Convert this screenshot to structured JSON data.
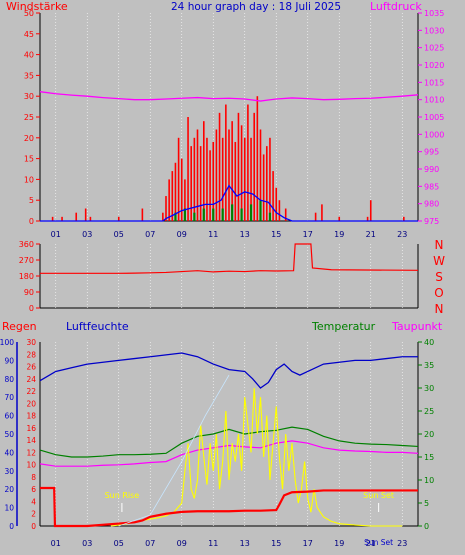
{
  "header": {
    "title": "24 hour graph day : 18 Juli 2025",
    "left_label": "Windstärke",
    "right_label": "Luftdruck"
  },
  "colors": {
    "background": "#c0c0c0",
    "gridline": "#ffffff",
    "wind": "#ff0000",
    "gust": "#0000ff",
    "windrun": "#008000",
    "pressure": "#ff00ff",
    "humidity": "#0000c8",
    "temperature": "#008000",
    "dewpoint": "#ff00ff",
    "solar": "#ffff00",
    "rain": "#ff0000",
    "sun_label": "#ffff00"
  },
  "chart_data": [
    {
      "type": "line",
      "title": "24 hour graph day : 18 Juli 2025",
      "xlabel": "",
      "x_ticks": [
        "01",
        "03",
        "05",
        "07",
        "09",
        "11",
        "13",
        "15",
        "17",
        "19",
        "21",
        "23"
      ],
      "xlim": [
        0,
        24
      ],
      "y_left_label": "Windstärke",
      "ylim_left": [
        0,
        50
      ],
      "y_left_ticks": [
        0,
        5,
        10,
        15,
        20,
        25,
        30,
        35,
        40,
        45,
        50
      ],
      "y_right_label": "Luftdruck",
      "ylim_right": [
        975,
        1035
      ],
      "y_right_ticks": [
        975,
        980,
        985,
        990,
        995,
        1000,
        1005,
        1010,
        1015,
        1020,
        1025,
        1030,
        1035
      ],
      "series": [
        {
          "axis": "right",
          "x": [
            0,
            1,
            2,
            3,
            4,
            5,
            6,
            7,
            8,
            9,
            10,
            11,
            12,
            13,
            14,
            14.5,
            15,
            16,
            17,
            18,
            19,
            20,
            21,
            22,
            23,
            24
          ],
          "values": [
            1012.3,
            1011.7,
            1011.3,
            1011.0,
            1010.6,
            1010.3,
            1010.0,
            1010.0,
            1010.2,
            1010.4,
            1010.6,
            1010.3,
            1010.4,
            1010.2,
            1009.6,
            1009.9,
            1010.2,
            1010.5,
            1010.3,
            1010.0,
            1010.1,
            1010.3,
            1010.4,
            1010.7,
            1011.0,
            1011.4
          ]
        },
        {
          "axis": "left",
          "x": [
            0,
            7.8,
            8.0,
            8.5,
            9,
            9.5,
            10,
            10.5,
            11,
            11.5,
            12,
            12.5,
            13,
            13.5,
            14,
            14.5,
            15,
            15.5,
            16,
            24
          ],
          "values": [
            0,
            0,
            0.6,
            1.5,
            2.5,
            3.0,
            3.5,
            4.0,
            4.0,
            5.0,
            8.5,
            6.0,
            7.0,
            6.5,
            5.0,
            4.5,
            2.0,
            0.8,
            0,
            0
          ]
        }
      ],
      "bars": {
        "wind": {
          "axis": "left",
          "x": [
            0.8,
            1.4,
            2.3,
            2.9,
            3.2,
            5.0,
            6.5,
            7.8,
            8.0,
            8.2,
            8.4,
            8.6,
            8.8,
            9.0,
            9.2,
            9.4,
            9.6,
            9.8,
            10.0,
            10.2,
            10.4,
            10.6,
            10.8,
            11.0,
            11.2,
            11.4,
            11.6,
            11.8,
            12.0,
            12.2,
            12.4,
            12.6,
            12.8,
            13.0,
            13.2,
            13.4,
            13.6,
            13.8,
            14.0,
            14.2,
            14.4,
            14.6,
            14.8,
            15.0,
            15.2,
            15.6,
            17.5,
            17.9,
            19.0,
            20.8,
            21.0,
            23.1
          ],
          "values": [
            1,
            1,
            2,
            3,
            1,
            1,
            3,
            2,
            6,
            10,
            12,
            14,
            20,
            15,
            10,
            25,
            18,
            20,
            22,
            18,
            24,
            20,
            17,
            19,
            22,
            26,
            20,
            28,
            22,
            24,
            19,
            26,
            23,
            20,
            28,
            20,
            26,
            30,
            22,
            16,
            18,
            20,
            12,
            8,
            5,
            3,
            2,
            4,
            1,
            1,
            5,
            1
          ]
        },
        "gust": {
          "axis": "left",
          "x": [
            8.6,
            9.2,
            9.8,
            10.4,
            11.0,
            11.6,
            12.2,
            12.8,
            13.4,
            14.0,
            14.6
          ],
          "values": [
            2,
            3,
            2,
            3,
            3,
            3,
            4,
            3,
            4,
            5,
            2
          ]
        }
      }
    },
    {
      "type": "line",
      "title": "",
      "ylim": [
        0,
        360
      ],
      "y_ticks": [
        0,
        90,
        180,
        270,
        360
      ],
      "right_labels": [
        "N",
        "W",
        "S",
        "O",
        "N"
      ],
      "series": [
        {
          "x": [
            0,
            5,
            6,
            7,
            8,
            9,
            10,
            11,
            12,
            13,
            14,
            15,
            16.1,
            16.2,
            17.2,
            17.3,
            18.5,
            24
          ],
          "values": [
            195,
            195,
            196,
            198,
            200,
            205,
            210,
            203,
            207,
            205,
            210,
            208,
            210,
            360,
            360,
            225,
            215,
            212
          ]
        }
      ]
    },
    {
      "type": "line",
      "title": "",
      "left_labels": {
        "rain": "Regen",
        "humidity": "Luftfeuchte",
        "temperature": "Temperatur",
        "dewpoint": "Taupunkt"
      },
      "humidity_ticks": [
        0,
        10,
        20,
        30,
        40,
        50,
        60,
        70,
        80,
        90,
        100
      ],
      "rain_ticks": [
        0,
        2,
        4,
        6,
        8,
        10,
        12,
        14,
        16,
        18,
        20,
        22,
        24,
        26,
        28,
        30
      ],
      "temp_ticks": [
        0,
        5,
        10,
        15,
        20,
        25,
        30,
        35,
        40
      ],
      "ylim_humidity": [
        0,
        100
      ],
      "ylim_rain": [
        0,
        30
      ],
      "ylim_temp": [
        0,
        40
      ],
      "annotations": {
        "sunrise": "Sun Rise",
        "sunset": "Sun Set",
        "sunset2": "Sun Set"
      },
      "x_ticks": [
        "01",
        "03",
        "05",
        "07",
        "09",
        "11",
        "13",
        "15",
        "17",
        "19",
        "21",
        "23"
      ],
      "series": [
        {
          "name": "Luftfeuchte",
          "axis": "humidity",
          "x": [
            0,
            1,
            2,
            3,
            4,
            5,
            6,
            7,
            8,
            9,
            10,
            11,
            12,
            13,
            13.5,
            14,
            14.5,
            15,
            15.5,
            16,
            16.5,
            17,
            18,
            19,
            20,
            21,
            22,
            23,
            24
          ],
          "values": [
            79,
            84,
            86,
            88,
            89,
            90,
            91,
            92,
            93,
            94,
            92,
            88,
            85,
            84,
            80,
            75,
            78,
            85,
            88,
            84,
            82,
            84,
            88,
            89,
            90,
            90,
            91,
            92,
            92
          ]
        },
        {
          "name": "Temperatur",
          "axis": "temp",
          "x": [
            0,
            1,
            2,
            3,
            4,
            5,
            6,
            7,
            8,
            9,
            10,
            11,
            12,
            13,
            14,
            15,
            16,
            17,
            18,
            19,
            20,
            21,
            22,
            23,
            24
          ],
          "values": [
            16.5,
            15.5,
            15,
            15,
            15.2,
            15.5,
            15.5,
            15.6,
            15.8,
            18,
            19.5,
            20,
            21,
            20,
            20.5,
            20.8,
            21.5,
            21,
            19.5,
            18.5,
            18,
            17.8,
            17.7,
            17.5,
            17.3
          ]
        },
        {
          "name": "Taupunkt",
          "axis": "temp",
          "x": [
            0,
            1,
            2,
            3,
            4,
            5,
            6,
            7,
            8,
            9,
            10,
            11,
            12,
            13,
            14,
            15,
            16,
            17,
            18,
            19,
            20,
            21,
            22,
            23,
            24
          ],
          "values": [
            13.5,
            13,
            13,
            13,
            13.2,
            13.3,
            13.5,
            13.8,
            14,
            15.5,
            16.5,
            17,
            17.5,
            17.2,
            17,
            18,
            18.5,
            18,
            17,
            16.5,
            16.3,
            16.2,
            16,
            16,
            15.8
          ]
        },
        {
          "name": "Solar",
          "axis": "temp",
          "x": [
            4.5,
            5,
            5.5,
            6,
            6.5,
            7,
            7.5,
            8,
            8.5,
            9,
            9.2,
            9.4,
            9.6,
            9.8,
            10,
            10.2,
            10.4,
            10.6,
            10.8,
            11,
            11.2,
            11.4,
            11.6,
            11.8,
            12,
            12.2,
            12.4,
            12.6,
            12.8,
            13,
            13.2,
            13.4,
            13.6,
            13.8,
            14,
            14.2,
            14.4,
            14.6,
            14.8,
            15,
            15.2,
            15.4,
            15.6,
            15.8,
            16,
            16.2,
            16.4,
            16.6,
            16.8,
            17,
            17.2,
            17.4,
            17.6,
            18,
            18.5,
            19,
            20,
            21,
            22,
            23
          ],
          "values": [
            0,
            0.2,
            0.5,
            0.8,
            1.2,
            1.5,
            1.8,
            2.2,
            3,
            5,
            12,
            18,
            8,
            6,
            10,
            22,
            15,
            9,
            18,
            12,
            20,
            8,
            14,
            25,
            10,
            18,
            14,
            20,
            12,
            28,
            22,
            16,
            30,
            20,
            28,
            15,
            24,
            10,
            18,
            26,
            15,
            8,
            20,
            12,
            18,
            10,
            5,
            8,
            14,
            6,
            3,
            8,
            4,
            2,
            1,
            0.5,
            0.2,
            0,
            0,
            0
          ]
        },
        {
          "name": "Regen",
          "axis": "rain",
          "x": [
            0,
            0.9,
            0.95,
            3,
            5,
            6,
            6.5,
            7,
            8,
            9,
            10,
            11,
            12,
            13,
            14,
            15,
            15.2,
            15.5,
            16,
            17,
            18,
            19,
            20,
            21,
            22,
            23,
            24
          ],
          "values": [
            6.2,
            6.2,
            0,
            0,
            0.4,
            0.6,
            0.9,
            1.5,
            2,
            2.3,
            2.4,
            2.4,
            2.4,
            2.5,
            2.5,
            2.6,
            3.5,
            5,
            5.5,
            5.6,
            5.8,
            5.8,
            5.8,
            5.8,
            5.8,
            5.8,
            5.8
          ]
        }
      ],
      "sunrise_x": 5.2,
      "sunset_x": 21.5
    }
  ],
  "bottom_labels": {
    "sun_set_label": "Sun Set",
    "sun_set_time": "21"
  }
}
